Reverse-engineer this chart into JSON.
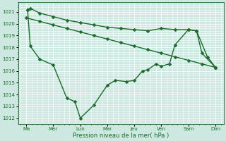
{
  "background_color": "#cce8e0",
  "grid_color": "#ffffff",
  "line_color": "#1a6b2a",
  "xlabel": "Pression niveau de la mer( hPa )",
  "ylim": [
    1011.5,
    1021.8
  ],
  "yticks": [
    1012,
    1013,
    1014,
    1015,
    1016,
    1017,
    1018,
    1019,
    1020,
    1021
  ],
  "xtick_labels": [
    "Ma",
    "Mer",
    "Lun",
    "Mar",
    "Jeu",
    "Ven",
    "Sam",
    "Dim"
  ],
  "xtick_positions": [
    0,
    1,
    2,
    3,
    4,
    5,
    6,
    7
  ],
  "xlim": [
    -0.3,
    7.3
  ],
  "line1_x": [
    0.05,
    0.15,
    0.5,
    1.0,
    1.5,
    2.0,
    2.5,
    3.0,
    3.5,
    4.0,
    4.5,
    5.0,
    5.5,
    6.0,
    6.3,
    6.7,
    7.0
  ],
  "line1_y": [
    1021.2,
    1021.3,
    1020.9,
    1020.6,
    1020.3,
    1020.1,
    1019.9,
    1019.7,
    1019.6,
    1019.5,
    1019.4,
    1019.6,
    1019.5,
    1019.5,
    1019.4,
    1017.2,
    1016.3
  ],
  "line2_x": [
    0.0,
    0.5,
    1.0,
    1.5,
    2.0,
    2.5,
    3.0,
    3.5,
    4.0,
    4.5,
    5.0,
    5.5,
    6.0,
    6.5,
    7.0
  ],
  "line2_y": [
    1020.5,
    1020.2,
    1019.9,
    1019.6,
    1019.3,
    1019.0,
    1018.7,
    1018.4,
    1018.1,
    1017.8,
    1017.5,
    1017.2,
    1016.9,
    1016.6,
    1016.3
  ],
  "line3_x": [
    0.05,
    0.15,
    0.5,
    1.0,
    1.5,
    1.8,
    2.0,
    2.5,
    3.0,
    3.3,
    3.7,
    4.0,
    4.3,
    4.5,
    4.8,
    5.0,
    5.3,
    5.5,
    6.0,
    6.3,
    6.5,
    7.0
  ],
  "line3_y": [
    1021.2,
    1018.1,
    1017.0,
    1016.5,
    1013.7,
    1013.4,
    1012.0,
    1013.1,
    1014.8,
    1015.2,
    1015.1,
    1015.2,
    1016.0,
    1016.1,
    1016.6,
    1016.4,
    1016.6,
    1018.2,
    1019.5,
    1019.4,
    1017.5,
    1016.3
  ],
  "marker": "D",
  "markersize": 2.5,
  "linewidth": 1.0
}
